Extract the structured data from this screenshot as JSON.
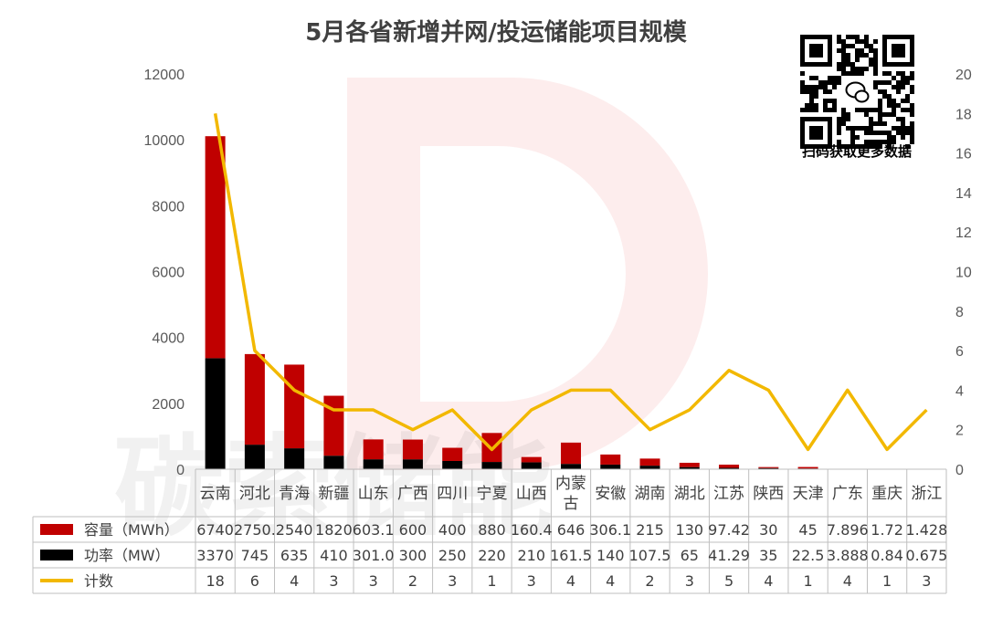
{
  "qr": {
    "caption": "扫码获取更多数据"
  },
  "watermark": {
    "text": "碳索储能"
  },
  "colors": {
    "capacity": "#C00000",
    "power": "#000000",
    "count": "#F2B800"
  },
  "chart_data": {
    "type": "bar",
    "title": "5月各省新增并网/投运储能项目规模",
    "categories": [
      "云南",
      "河北",
      "青海",
      "新疆",
      "山东",
      "广西",
      "四川",
      "宁夏",
      "山西",
      "内蒙古",
      "安徽",
      "湖南",
      "湖北",
      "江苏",
      "陕西",
      "天津",
      "广东",
      "重庆",
      "浙江"
    ],
    "y_left": {
      "min": 0,
      "max": 12000,
      "ticks": [
        0,
        2000,
        4000,
        6000,
        8000,
        10000,
        12000
      ]
    },
    "y_right": {
      "min": 0,
      "max": 20,
      "ticks": [
        0,
        2,
        4,
        6,
        8,
        10,
        12,
        14,
        16,
        18,
        20
      ]
    },
    "stacked": true,
    "series": [
      {
        "name": "容量（MWh）",
        "type": "bar",
        "axis": "left",
        "values": [
          6740,
          2750,
          2540,
          1820,
          603.1,
          600,
          400,
          880,
          160.4,
          646,
          306.1,
          215,
          130,
          97.42,
          30,
          45,
          7.896,
          1.72,
          1.428
        ],
        "labels": [
          "6740",
          "2750.",
          "2540",
          "1820",
          "603.1",
          "600",
          "400",
          "880",
          "160.4",
          "646",
          "306.1",
          "215",
          "130",
          "97.42",
          "30",
          "45",
          "7.896",
          "1.72",
          "1.428"
        ]
      },
      {
        "name": "功率（MW）",
        "type": "bar",
        "axis": "left",
        "values": [
          3370,
          745,
          635,
          410,
          301,
          300,
          250,
          220,
          210,
          161.5,
          140,
          107.5,
          65,
          41.29,
          35,
          22.5,
          3.888,
          0.84,
          0.675
        ],
        "labels": [
          "3370",
          "745",
          "635",
          "410",
          "301.0",
          "300",
          "250",
          "220",
          "210",
          "161.5",
          "140",
          "107.5",
          "65",
          "41.29",
          "35",
          "22.5",
          "3.888",
          "0.84",
          "0.675"
        ]
      },
      {
        "name": "计数",
        "type": "line",
        "axis": "right",
        "values": [
          18,
          6,
          4,
          3,
          3,
          2,
          3,
          1,
          3,
          4,
          4,
          2,
          3,
          5,
          4,
          1,
          4,
          1,
          3
        ],
        "labels": [
          "18",
          "6",
          "4",
          "3",
          "3",
          "2",
          "3",
          "1",
          "3",
          "4",
          "4",
          "2",
          "3",
          "5",
          "4",
          "1",
          "4",
          "1",
          "3"
        ]
      }
    ]
  }
}
